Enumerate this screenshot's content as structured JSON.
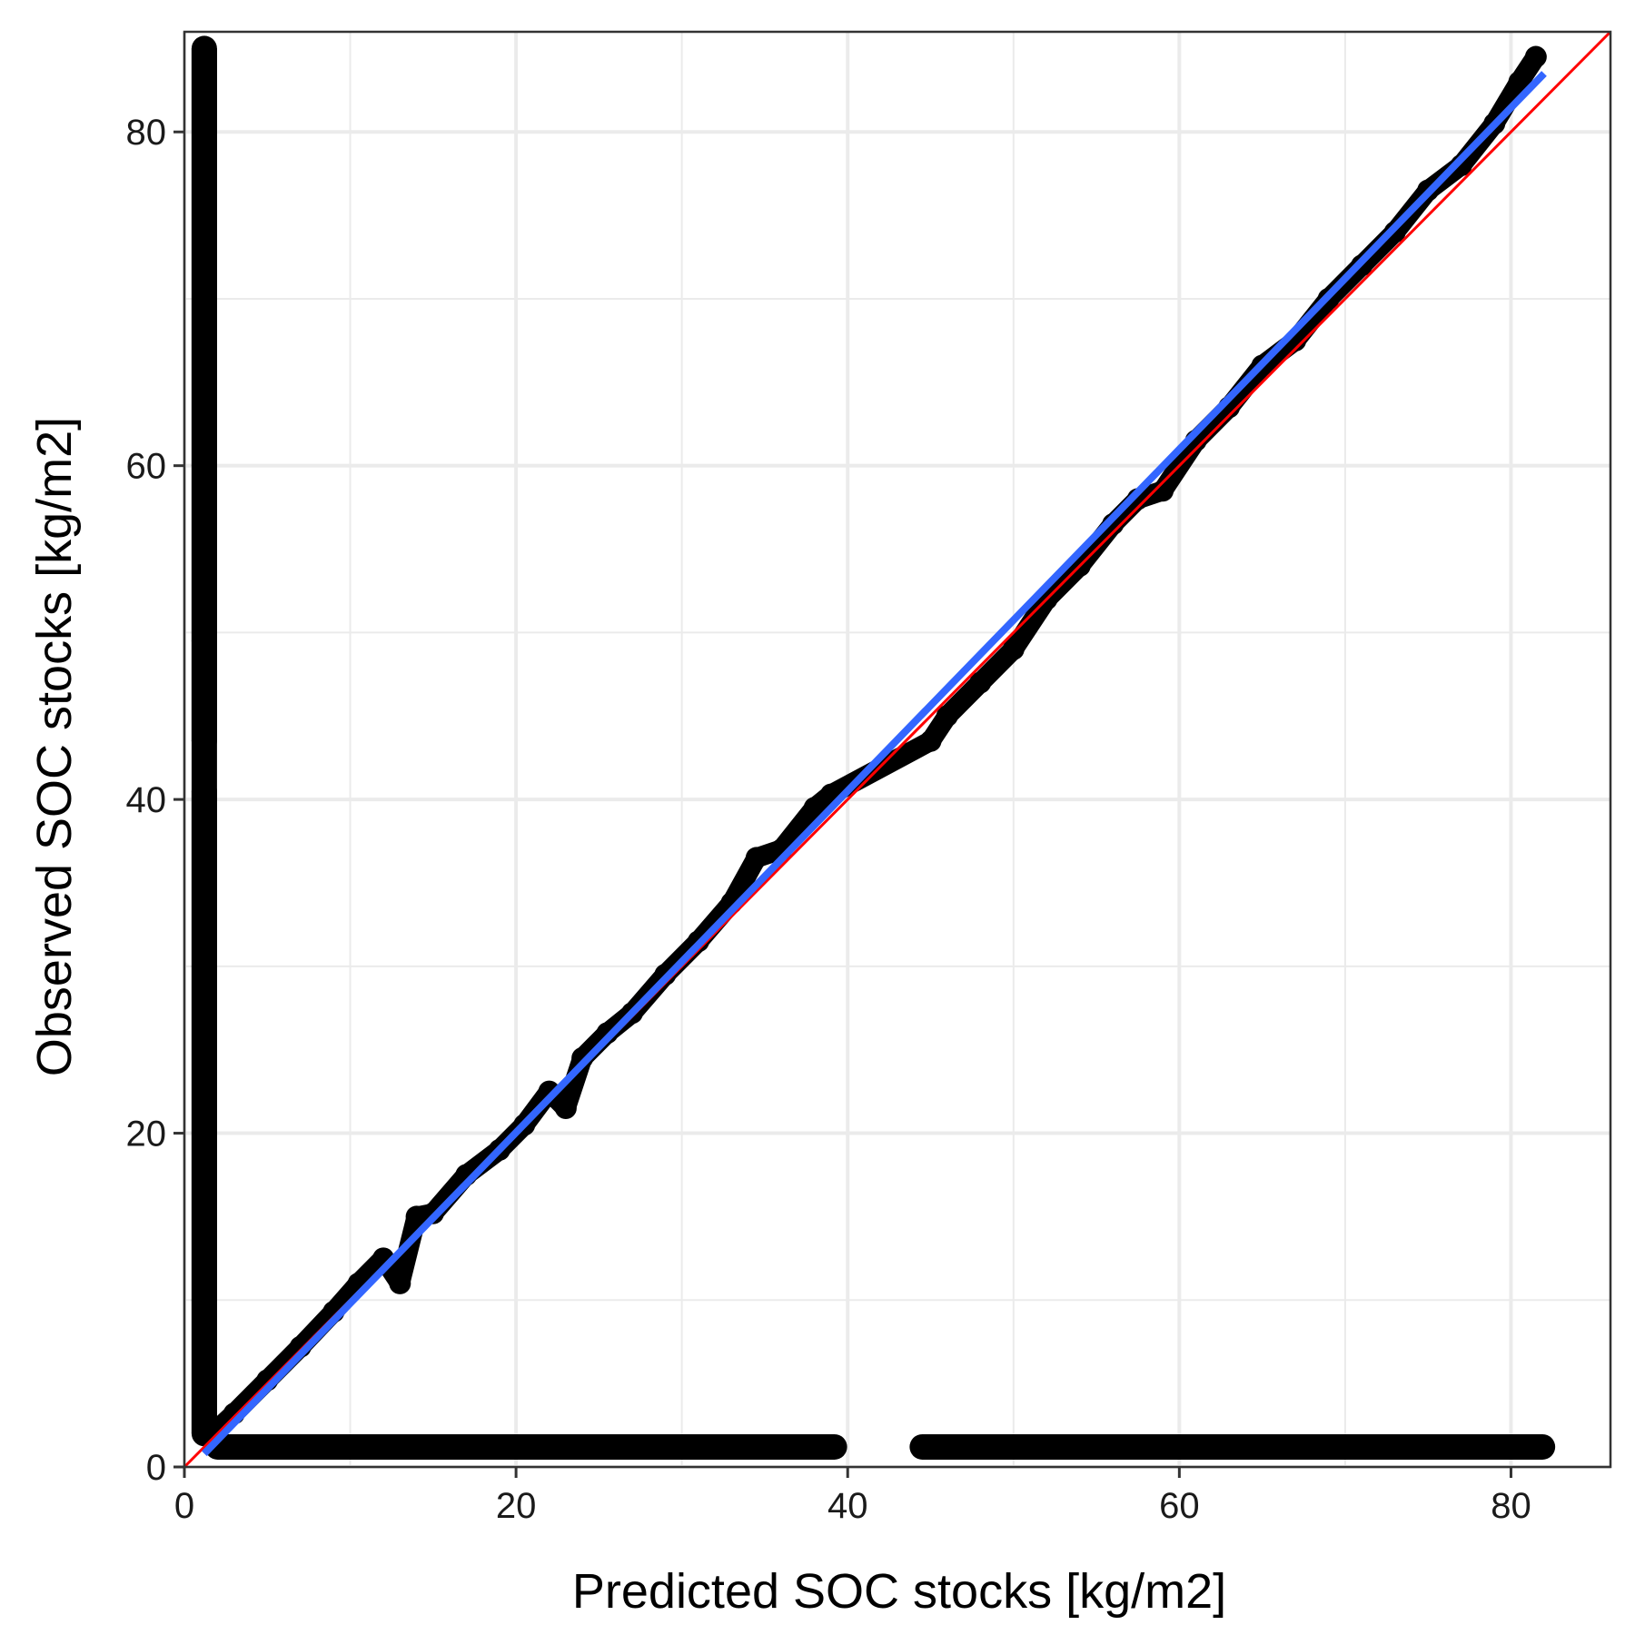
{
  "chart_data": {
    "type": "scatter",
    "title": "",
    "xlabel": "Predicted SOC stocks [kg/m2]",
    "ylabel": "Observed SOC stocks [kg/m2]",
    "xlim": [
      0,
      86
    ],
    "ylim": [
      0,
      86
    ],
    "x_ticks": [
      0,
      20,
      40,
      60,
      80
    ],
    "y_ticks": [
      0,
      20,
      40,
      60,
      80
    ],
    "x_tick_labels": [
      "0",
      "20",
      "40",
      "60",
      "80"
    ],
    "y_tick_labels": [
      "0",
      "20",
      "40",
      "60",
      "80"
    ],
    "minor_grid": [
      10,
      30,
      50,
      70
    ],
    "grid": true,
    "legend": "none",
    "colors": {
      "points": "#000000",
      "identity_line": "#ff0000",
      "fit_line": "#3366ff",
      "grid": "#ebebeb",
      "panel_border": "#333333"
    },
    "identity_line": {
      "x": [
        0,
        86
      ],
      "y": [
        0,
        86
      ]
    },
    "fit_line": {
      "x": [
        1.2,
        82
      ],
      "y": [
        0.8,
        83.5
      ]
    },
    "series": [
      {
        "x": [
          1.5,
          3,
          5,
          7,
          9,
          10.5,
          12,
          13,
          14,
          15,
          17,
          19,
          20.5,
          22,
          23,
          24,
          25.5,
          27,
          29,
          31,
          33,
          34.5,
          36,
          38,
          39,
          45,
          46,
          48,
          50,
          52,
          54,
          56,
          57.5,
          59,
          61,
          63,
          65,
          67,
          69,
          71,
          73,
          75,
          77,
          79,
          80.5,
          81.5
        ],
        "y": [
          1.8,
          3.2,
          5.2,
          7.2,
          9.3,
          11,
          12.5,
          11,
          15,
          15.2,
          17.5,
          19,
          20.5,
          22.5,
          21.5,
          24.5,
          26,
          27.2,
          29.5,
          31.5,
          33.8,
          36.5,
          37,
          39.5,
          40.3,
          43.5,
          45,
          47,
          49,
          52,
          54,
          56.5,
          58,
          58.5,
          61.5,
          63.5,
          66,
          67.5,
          70,
          72,
          74,
          76.5,
          78,
          80.5,
          83,
          84.5
        ]
      },
      {
        "x": [
          1.2,
          1.2,
          1.2,
          1.2,
          1.2,
          1.2,
          1.2,
          1.2,
          1.2
        ],
        "y": [
          2,
          10,
          20,
          30,
          40.5,
          43.5,
          49.5,
          60,
          85
        ]
      },
      {
        "x": [
          2,
          10,
          20,
          30,
          39.2,
          44.5,
          55,
          65,
          75,
          81.9
        ],
        "y": [
          1.2,
          1.2,
          1.2,
          1.2,
          1.2,
          1.2,
          1.2,
          1.2,
          1.2,
          1.2
        ]
      }
    ]
  }
}
